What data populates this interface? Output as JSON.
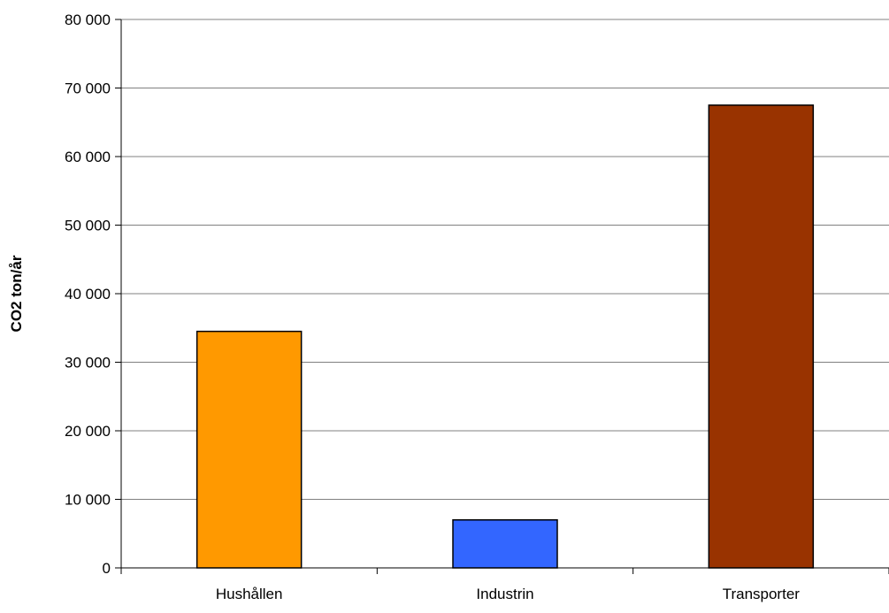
{
  "chart_data": {
    "type": "bar",
    "title": "",
    "xlabel": "",
    "ylabel": "CO2 ton/år",
    "categories": [
      "Hushållen",
      "Industrin",
      "Transporter"
    ],
    "values": [
      34500,
      7000,
      67500
    ],
    "colors": [
      "#FF9900",
      "#3366FF",
      "#993300"
    ],
    "ylim": [
      0,
      80000
    ],
    "yticks": [
      0,
      10000,
      20000,
      30000,
      40000,
      50000,
      60000,
      70000,
      80000
    ],
    "ytick_labels": [
      "0",
      "10 000",
      "20 000",
      "30 000",
      "40 000",
      "50 000",
      "60 000",
      "70 000",
      "80 000"
    ],
    "grid": true,
    "grid_color": "#808080",
    "bar_edge_color": "#000000"
  }
}
